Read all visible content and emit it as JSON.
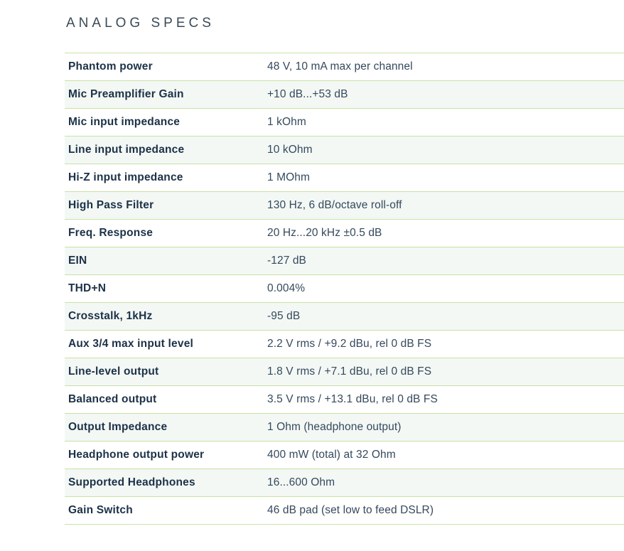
{
  "page": {
    "title": "ANALOG SPECS"
  },
  "colors": {
    "background": "#ffffff",
    "divider_green": "#c9e1a4",
    "stripe_row": "#f3f8f5",
    "label_text": "#1c3147",
    "value_text": "#35495c",
    "title_text": "#3a4a57"
  },
  "table": {
    "rows": [
      {
        "label": "Phantom power",
        "value": "48 V, 10 mA max per channel"
      },
      {
        "label": "Mic Preamplifier Gain",
        "value": "+10 dB...+53 dB"
      },
      {
        "label": "Mic input impedance",
        "value": "1 kOhm"
      },
      {
        "label": "Line input impedance",
        "value": "10 kOhm"
      },
      {
        "label": "Hi-Z input impedance",
        "value": "1 MOhm"
      },
      {
        "label": "High Pass Filter",
        "value": "130 Hz, 6 dB/octave roll-off"
      },
      {
        "label": "Freq. Response",
        "value": "20 Hz...20 kHz ±0.5 dB"
      },
      {
        "label": "EIN",
        "value": "-127 dB"
      },
      {
        "label": "THD+N",
        "value": "0.004%"
      },
      {
        "label": "Crosstalk, 1kHz",
        "value": "-95 dB"
      },
      {
        "label": "Aux 3/4 max input level",
        "value": "2.2 V rms / +9.2 dBu, rel 0 dB FS"
      },
      {
        "label": "Line-level output",
        "value": "1.8 V rms / +7.1 dBu, rel 0 dB FS"
      },
      {
        "label": "Balanced output",
        "value": "3.5 V rms / +13.1 dBu, rel 0 dB FS"
      },
      {
        "label": "Output Impedance",
        "value": "1 Ohm (headphone output)"
      },
      {
        "label": "Headphone output power",
        "value": "400 mW (total) at 32 Ohm"
      },
      {
        "label": "Supported Headphones",
        "value": "16...600 Ohm"
      },
      {
        "label": "Gain Switch",
        "value": "46 dB pad (set low to feed DSLR)"
      }
    ]
  }
}
